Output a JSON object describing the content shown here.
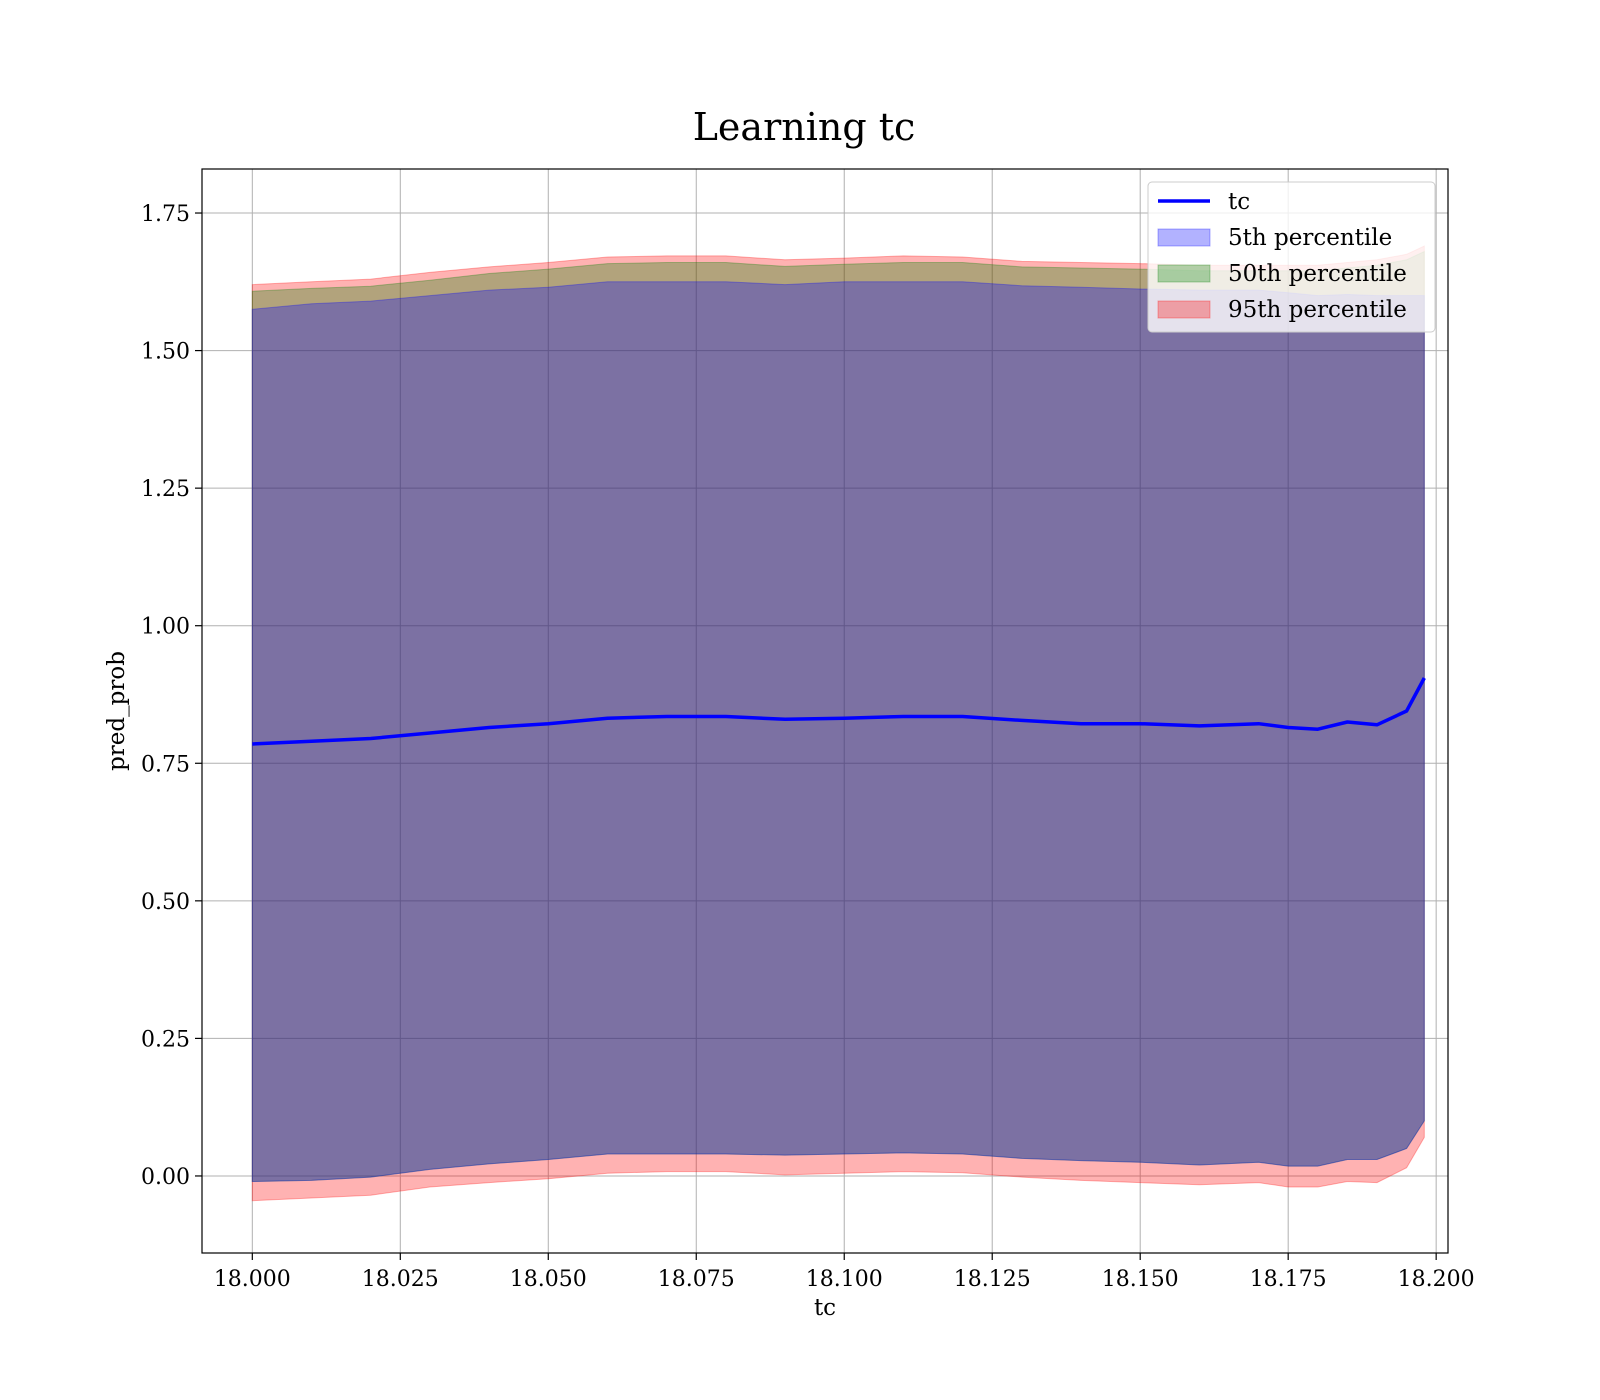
{
  "chart_data": {
    "type": "area",
    "title": "Learning tc",
    "xlabel": "tc",
    "ylabel": "pred_prob",
    "xlim": [
      17.9915,
      18.202
    ],
    "ylim": [
      -0.14,
      1.83
    ],
    "x_ticks": [
      "18.000",
      "18.025",
      "18.050",
      "18.075",
      "18.100",
      "18.125",
      "18.150",
      "18.175",
      "18.200"
    ],
    "x_tick_values": [
      18.0,
      18.025,
      18.05,
      18.075,
      18.1,
      18.125,
      18.15,
      18.175,
      18.2
    ],
    "y_ticks": [
      "0.00",
      "0.25",
      "0.50",
      "0.75",
      "1.00",
      "1.25",
      "1.50",
      "1.75"
    ],
    "y_tick_values": [
      0.0,
      0.25,
      0.5,
      0.75,
      1.0,
      1.25,
      1.5,
      1.75
    ],
    "grid": true,
    "legend_position": "top-right",
    "x": [
      18.0,
      18.01,
      18.02,
      18.03,
      18.04,
      18.05,
      18.06,
      18.07,
      18.08,
      18.09,
      18.1,
      18.11,
      18.12,
      18.13,
      18.14,
      18.15,
      18.16,
      18.17,
      18.175,
      18.18,
      18.185,
      18.19,
      18.195,
      18.198
    ],
    "series": [
      {
        "name": "tc",
        "kind": "line",
        "color": "#0000ff",
        "values": [
          0.785,
          0.79,
          0.795,
          0.805,
          0.815,
          0.822,
          0.832,
          0.835,
          0.835,
          0.83,
          0.832,
          0.835,
          0.835,
          0.828,
          0.822,
          0.822,
          0.818,
          0.822,
          0.815,
          0.812,
          0.825,
          0.82,
          0.845,
          0.905
        ]
      },
      {
        "name": "5th percentile",
        "kind": "band",
        "color": "#0000ff",
        "lower": [
          -0.01,
          -0.008,
          -0.002,
          0.012,
          0.022,
          0.03,
          0.04,
          0.04,
          0.04,
          0.038,
          0.04,
          0.042,
          0.04,
          0.032,
          0.028,
          0.025,
          0.02,
          0.025,
          0.018,
          0.018,
          0.03,
          0.03,
          0.05,
          0.1
        ],
        "upper": [
          1.575,
          1.585,
          1.59,
          1.6,
          1.61,
          1.615,
          1.625,
          1.625,
          1.625,
          1.62,
          1.625,
          1.625,
          1.625,
          1.618,
          1.615,
          1.612,
          1.61,
          1.61,
          1.605,
          1.6,
          1.602,
          1.6,
          1.6,
          1.6
        ]
      },
      {
        "name": "50th percentile",
        "kind": "band",
        "color": "#008000",
        "lower": [
          -0.01,
          -0.008,
          -0.002,
          0.012,
          0.022,
          0.03,
          0.04,
          0.04,
          0.04,
          0.038,
          0.04,
          0.042,
          0.04,
          0.032,
          0.028,
          0.025,
          0.02,
          0.025,
          0.018,
          0.018,
          0.03,
          0.03,
          0.05,
          0.1
        ],
        "upper": [
          1.608,
          1.613,
          1.617,
          1.628,
          1.64,
          1.648,
          1.658,
          1.66,
          1.66,
          1.653,
          1.657,
          1.66,
          1.66,
          1.652,
          1.65,
          1.648,
          1.645,
          1.645,
          1.645,
          1.645,
          1.65,
          1.655,
          1.665,
          1.68
        ]
      },
      {
        "name": "95th percentile",
        "kind": "band",
        "color": "#ff0000",
        "lower": [
          -0.045,
          -0.04,
          -0.035,
          -0.02,
          -0.012,
          -0.005,
          0.005,
          0.008,
          0.008,
          0.002,
          0.005,
          0.008,
          0.006,
          -0.002,
          -0.008,
          -0.012,
          -0.016,
          -0.012,
          -0.02,
          -0.02,
          -0.01,
          -0.012,
          0.015,
          0.07
        ],
        "upper": [
          1.62,
          1.625,
          1.63,
          1.642,
          1.652,
          1.66,
          1.67,
          1.672,
          1.672,
          1.665,
          1.668,
          1.672,
          1.67,
          1.662,
          1.66,
          1.658,
          1.655,
          1.655,
          1.655,
          1.655,
          1.66,
          1.665,
          1.675,
          1.69
        ]
      }
    ]
  }
}
